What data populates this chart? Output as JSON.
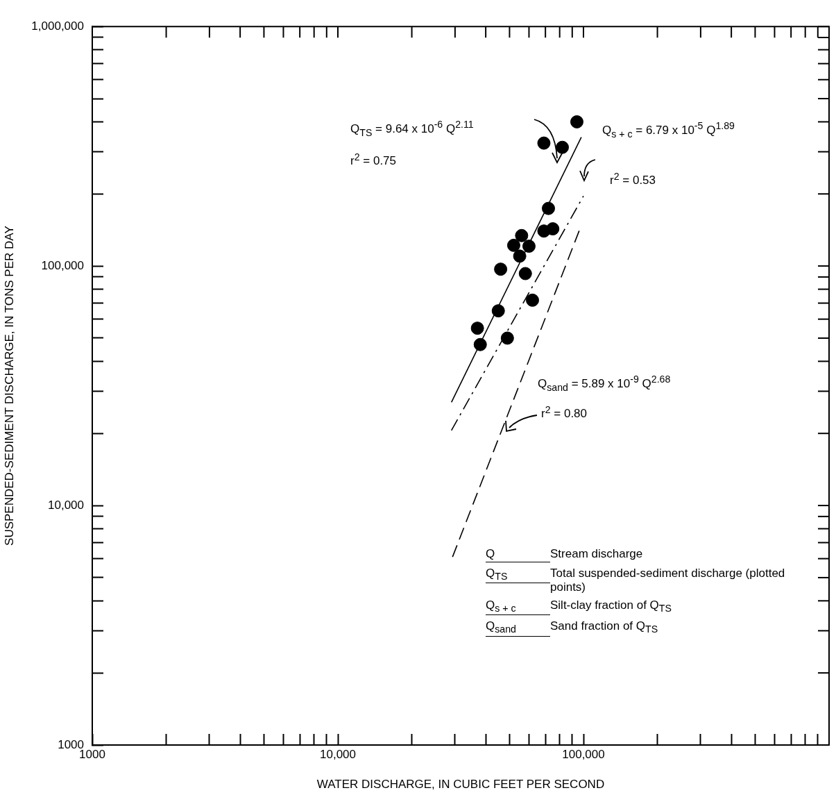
{
  "chart_data": {
    "type": "scatter",
    "xlabel": "WATER DISCHARGE, IN CUBIC FEET PER SECOND",
    "ylabel": "SUSPENDED-SEDIMENT DISCHARGE, IN TONS PER DAY",
    "log": "xy",
    "grid": false,
    "legend": false,
    "marker": "circle",
    "xlim": [
      1000,
      1000000
    ],
    "ylim": [
      1000,
      1000000
    ],
    "xticks": [
      1000,
      {
        "value": 2000,
        "label": null
      },
      {
        "value": 3000,
        "label": null
      },
      {
        "value": 4000,
        "label": null
      },
      {
        "value": 5000,
        "label": null
      },
      {
        "value": 6000,
        "label": null
      },
      {
        "value": 7000,
        "label": null
      },
      {
        "value": 8000,
        "label": null
      },
      {
        "value": 9000,
        "label": null
      },
      {
        "value": 10000,
        "label": "10,000"
      },
      {
        "value": 20000,
        "label": null
      },
      {
        "value": 30000,
        "label": null
      },
      {
        "value": 40000,
        "label": null
      },
      {
        "value": 50000,
        "label": null
      },
      {
        "value": 60000,
        "label": null
      },
      {
        "value": 70000,
        "label": null
      },
      {
        "value": 80000,
        "label": null
      },
      {
        "value": 90000,
        "label": null
      },
      {
        "value": 100000,
        "label": "100,000"
      },
      {
        "value": 200000,
        "label": null
      },
      {
        "value": 300000,
        "label": null
      },
      {
        "value": 400000,
        "label": null
      },
      {
        "value": 500000,
        "label": null
      },
      {
        "value": 600000,
        "label": null
      },
      {
        "value": 700000,
        "label": null
      },
      {
        "value": 800000,
        "label": null
      },
      {
        "value": 900000,
        "label": null
      }
    ],
    "yticks": [
      1000,
      {
        "value": 2000,
        "label": null
      },
      {
        "value": 3000,
        "label": null
      },
      {
        "value": 4000,
        "label": null
      },
      {
        "value": 5000,
        "label": null
      },
      {
        "value": 6000,
        "label": null
      },
      {
        "value": 7000,
        "label": null
      },
      {
        "value": 8000,
        "label": null
      },
      {
        "value": 9000,
        "label": null
      },
      {
        "value": 10000,
        "label": "10,000"
      },
      {
        "value": 20000,
        "label": null
      },
      {
        "value": 30000,
        "label": null
      },
      {
        "value": 40000,
        "label": null
      },
      {
        "value": 50000,
        "label": null
      },
      {
        "value": 60000,
        "label": null
      },
      {
        "value": 70000,
        "label": null
      },
      {
        "value": 80000,
        "label": null
      },
      {
        "value": 90000,
        "label": null
      },
      {
        "value": 100000,
        "label": "100,000"
      },
      {
        "value": 200000,
        "label": null
      },
      {
        "value": 300000,
        "label": null
      },
      {
        "value": 400000,
        "label": null
      },
      {
        "value": 500000,
        "label": null
      },
      {
        "value": 600000,
        "label": null
      },
      {
        "value": 700000,
        "label": null
      },
      {
        "value": 800000,
        "label": null
      },
      {
        "value": 900000,
        "label": null
      },
      {
        "value": 1000000,
        "label": "1,000,000"
      }
    ],
    "series": [
      {
        "color": "#000000",
        "x": [
          94000,
          69000,
          82000,
          72000,
          69000,
          75000,
          56000,
          52000,
          60000,
          55000,
          46000,
          58000,
          62000,
          45000,
          37000,
          38000,
          49000
        ],
        "values": [
          400000,
          326000,
          313000,
          174000,
          140000,
          143000,
          134000,
          122000,
          121000,
          110000,
          97000,
          93000,
          72000,
          65000,
          55000,
          47000,
          50000
        ]
      },
      {
        "type": "line",
        "color": "#000000",
        "marker": "none",
        "line_style": "solid",
        "x": [
          29000,
          98000
        ],
        "values": [
          27000,
          345000
        ]
      },
      {
        "type": "line",
        "color": "#000000",
        "marker": "none",
        "line_style": "dashdot",
        "x": [
          29000,
          100000
        ],
        "values": [
          20600,
          196000
        ]
      },
      {
        "type": "line",
        "color": "#000000",
        "marker": "none",
        "line_style": "dashed",
        "x": [
          29300,
          97000
        ],
        "values": [
          6100,
          144000
        ]
      }
    ],
    "annotations": [
      "Q$_{TS}$ = 9.64 x 10$^{-6}$ Q$^{2.11}$",
      "r$^{2}$ = 0.75",
      "Q$_{s + c}$ = 6.79 x 10$^{-5}$ Q$^{1.89}$",
      "r$^{2}$ = 0.53",
      "Q$_{sand}$ = 5.89 x 10$^{-9}$ Q$^{2.68}$",
      "r$^{2}$ = 0.80",
      "Q",
      "Stream discharge",
      "Q$_{TS}$",
      "Total suspended-sediment discharge (plotted points)",
      "Q$_{s + c}$",
      "Silt-clay fraction of Q$_{TS}$",
      "Q$_{sand}$",
      "Sand fraction of Q$_{TS}$"
    ]
  }
}
